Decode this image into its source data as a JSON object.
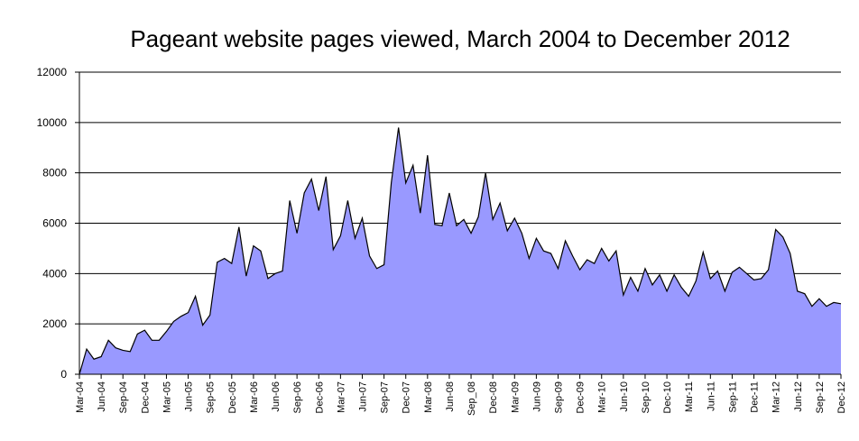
{
  "chart_data": {
    "type": "area",
    "title": "Pageant website pages viewed, March 2004 to December 2012",
    "categories": [
      "Mar-04",
      null,
      null,
      "Jun-04",
      null,
      null,
      "Sep-04",
      null,
      null,
      "Dec-04",
      null,
      null,
      "Mar-05",
      null,
      null,
      "Jun-05",
      null,
      null,
      "Sep-05",
      null,
      null,
      "Dec-05",
      null,
      null,
      "Mar-06",
      null,
      null,
      "Jun-06",
      null,
      null,
      "Sep-06",
      null,
      null,
      "Dec-06",
      null,
      null,
      "Mar-07",
      null,
      null,
      "Jun-07",
      null,
      null,
      "Sep-07",
      null,
      null,
      "Dec-07",
      null,
      null,
      "Mar-08",
      null,
      null,
      "Jun-08",
      null,
      null,
      "Sep_08",
      null,
      null,
      "Dec-08",
      null,
      null,
      "Mar-09",
      null,
      null,
      "Jun-09",
      null,
      null,
      "Sep-09",
      null,
      null,
      "Dec-09",
      null,
      null,
      "Mar-10",
      null,
      null,
      "Jun-10",
      null,
      null,
      "Sep-10",
      null,
      null,
      "Dec-10",
      null,
      null,
      "Mar-11",
      null,
      null,
      "Jun-11",
      null,
      null,
      "Sep-11",
      null,
      null,
      "Dec-11",
      null,
      null,
      "Mar-12",
      null,
      null,
      "Jun-12",
      null,
      null,
      "Sep-12",
      null,
      null,
      "Dec-12"
    ],
    "values": [
      0,
      1000,
      600,
      700,
      1350,
      1050,
      950,
      900,
      1600,
      1750,
      1350,
      1350,
      1700,
      2100,
      2300,
      2450,
      3100,
      1950,
      2350,
      4450,
      4600,
      4400,
      5850,
      3900,
      5100,
      4900,
      3800,
      4000,
      4100,
      6900,
      5600,
      7200,
      7750,
      6500,
      7850,
      4950,
      5500,
      6900,
      5400,
      6200,
      4700,
      4200,
      4350,
      7600,
      9800,
      7600,
      8300,
      6400,
      8700,
      5950,
      5900,
      7200,
      5900,
      6150,
      5600,
      6250,
      8000,
      6150,
      6800,
      5700,
      6200,
      5600,
      4600,
      5400,
      4900,
      4800,
      4200,
      5300,
      4700,
      4150,
      4550,
      4400,
      5000,
      4500,
      4900,
      3150,
      3850,
      3300,
      4200,
      3550,
      3950,
      3300,
      3950,
      3450,
      3100,
      3700,
      4850,
      3800,
      4100,
      3300,
      4050,
      4250,
      4000,
      3750,
      3800,
      4150,
      5750,
      5450,
      4800,
      3300,
      3200,
      2700,
      3000,
      2700,
      2850,
      2800
    ],
    "color": "#9999ff",
    "ylim": [
      0,
      12000
    ],
    "yticks": [
      0,
      2000,
      4000,
      6000,
      8000,
      10000,
      12000
    ],
    "grid": true
  }
}
